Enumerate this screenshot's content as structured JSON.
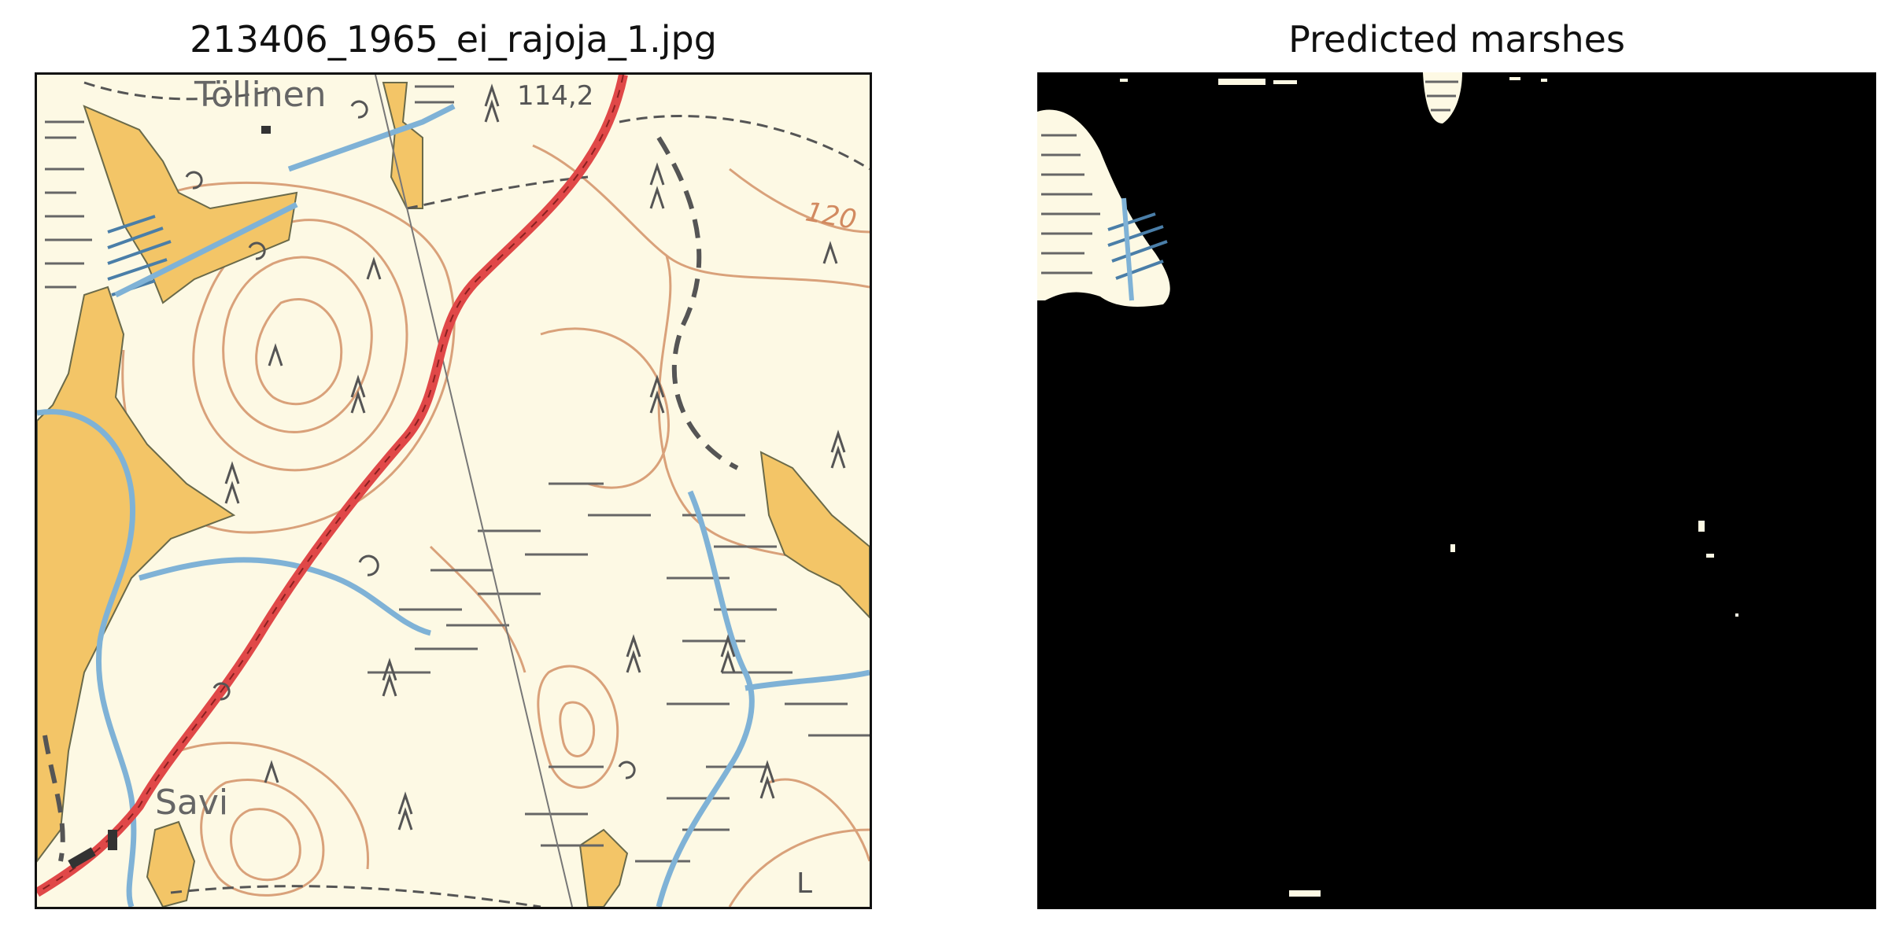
{
  "panels": {
    "left": {
      "title": "213406_1965_ei_rajoja_1.jpg"
    },
    "right": {
      "title": "Predicted marshes"
    }
  },
  "map_labels": {
    "place_top": "Töllinen",
    "elevation_top": "114,2",
    "contour_120": "120",
    "place_bottom": "Savi",
    "letter_corner": "L"
  },
  "colors": {
    "paper": "#fdf9e4",
    "field": "#f3c567",
    "water": "#7fb2d6",
    "road": "#e04848",
    "contour": "#d9a17a",
    "symbol": "#555555",
    "mask": "#000000"
  }
}
